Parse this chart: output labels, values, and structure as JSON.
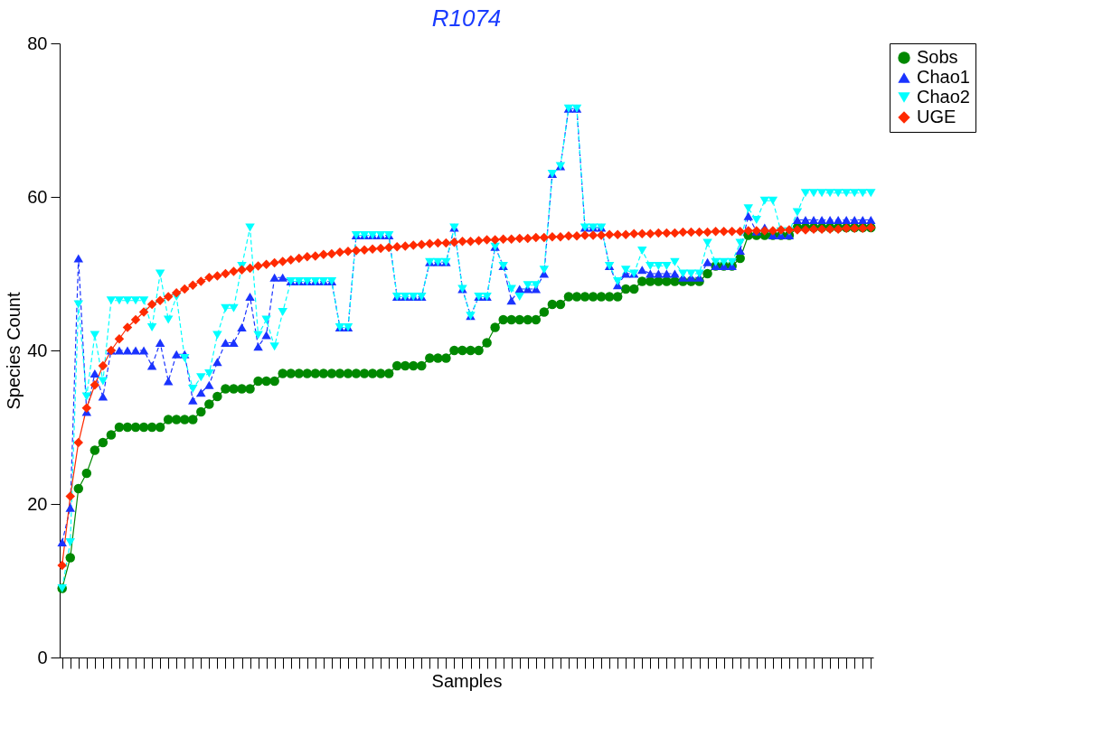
{
  "chart_data": {
    "type": "line",
    "title": "R1074",
    "xlabel": "Samples",
    "ylabel": "Species Count",
    "categories": [
      null,
      null,
      null,
      null,
      null,
      null,
      null,
      null,
      null,
      null,
      null,
      null,
      null,
      null,
      null,
      null,
      null,
      null,
      null,
      null,
      null,
      null,
      null,
      null,
      null,
      null,
      null,
      null,
      null,
      null,
      null,
      null,
      null,
      null,
      null,
      null,
      null,
      null,
      null,
      null,
      null,
      null,
      null,
      null,
      null,
      null,
      null,
      null,
      null,
      null,
      null,
      null,
      null,
      null,
      null,
      null,
      null,
      null,
      null,
      null,
      null,
      null,
      null,
      null,
      null,
      null,
      null,
      null,
      null,
      null,
      null,
      null,
      null,
      null,
      null,
      null,
      null,
      null,
      null,
      null,
      null,
      null,
      null,
      null,
      null,
      null,
      null,
      null,
      null,
      null,
      null,
      null,
      null,
      null,
      null,
      null,
      null,
      null,
      null,
      null
    ],
    "series": [
      {
        "name": "Sobs",
        "color": "#008800",
        "marker": "circle",
        "line_style": "solid",
        "values": [
          9,
          13,
          22,
          24,
          27,
          28,
          29,
          30,
          30,
          30,
          30,
          30,
          30,
          31,
          31,
          31,
          31,
          32,
          33,
          34,
          35,
          35,
          35,
          35,
          36,
          36,
          36,
          37,
          37,
          37,
          37,
          37,
          37,
          37,
          37,
          37,
          37,
          37,
          37,
          37,
          37,
          38,
          38,
          38,
          38,
          39,
          39,
          39,
          40,
          40,
          40,
          40,
          41,
          43,
          44,
          44,
          44,
          44,
          44,
          45,
          46,
          46,
          47,
          47,
          47,
          47,
          47,
          47,
          47,
          48,
          48,
          49,
          49,
          49,
          49,
          49,
          49,
          49,
          49,
          50,
          51,
          51,
          51,
          52,
          55,
          55,
          55,
          55,
          55,
          55,
          56,
          56,
          56,
          56,
          56,
          56,
          56,
          56,
          56,
          56
        ]
      },
      {
        "name": "Chao1",
        "color": "#1a33ff",
        "marker": "triangle",
        "line_style": "dashed",
        "values": [
          15,
          19.5,
          52,
          32,
          37,
          34,
          40,
          40,
          40,
          40,
          40,
          38,
          41,
          36,
          39.5,
          39.5,
          33.5,
          34.5,
          35.5,
          38.5,
          41,
          41,
          43,
          47,
          40.5,
          42,
          49.5,
          49.5,
          49,
          49,
          49,
          49,
          49,
          49,
          43,
          43,
          55,
          55,
          55,
          55,
          55,
          47,
          47,
          47,
          47,
          51.5,
          51.5,
          51.5,
          56,
          48,
          44.5,
          47,
          47,
          53.5,
          51,
          46.5,
          48,
          48,
          48,
          50,
          63,
          64,
          71.5,
          71.5,
          56,
          56,
          56,
          51,
          48.5,
          50,
          50,
          50.5,
          50,
          50,
          50,
          50,
          49.5,
          49.5,
          49.5,
          51.5,
          51,
          51,
          51,
          53,
          57.5,
          55.5,
          56,
          55,
          55,
          55,
          57,
          57,
          57,
          57,
          57,
          57,
          57,
          57,
          57,
          57
        ]
      },
      {
        "name": "Chao2",
        "color": "#00ffff",
        "marker": "triangle-down",
        "line_style": "dashed",
        "values": [
          9,
          15,
          46,
          34,
          42,
          36,
          46.5,
          46.5,
          46.5,
          46.5,
          46.5,
          43,
          50,
          44,
          47,
          39,
          35,
          36.5,
          37,
          42,
          45.5,
          45.5,
          51,
          56,
          42,
          44,
          40.5,
          45,
          49,
          49,
          49,
          49,
          49,
          49,
          43,
          43,
          55,
          55,
          55,
          55,
          55,
          47,
          47,
          47,
          47,
          51.5,
          51.5,
          51.5,
          56,
          48,
          44.5,
          47,
          47,
          53.5,
          51,
          48,
          47,
          48.5,
          48.5,
          50.5,
          63,
          64,
          71.5,
          71.5,
          56,
          56,
          56,
          51,
          49,
          50.5,
          50,
          53,
          51,
          51,
          51,
          51.5,
          50,
          50,
          50,
          54,
          51.5,
          51.5,
          51.5,
          54,
          58.5,
          57,
          59.5,
          59.5,
          55.5,
          55.5,
          58,
          60.5,
          60.5,
          60.5,
          60.5,
          60.5,
          60.5,
          60.5,
          60.5,
          60.5
        ]
      },
      {
        "name": "UGE",
        "color": "#ff2a00",
        "marker": "diamond",
        "line_style": "solid",
        "values": [
          12,
          21,
          28,
          32.5,
          35.5,
          38,
          40,
          41.5,
          43,
          44,
          45,
          46,
          46.5,
          47,
          47.5,
          48,
          48.5,
          49,
          49.5,
          49.7,
          50,
          50.3,
          50.5,
          50.7,
          51,
          51.2,
          51.4,
          51.6,
          51.8,
          52,
          52.2,
          52.3,
          52.5,
          52.6,
          52.8,
          52.9,
          53,
          53.1,
          53.2,
          53.3,
          53.4,
          53.5,
          53.6,
          53.7,
          53.8,
          53.9,
          54,
          54,
          54.1,
          54.2,
          54.2,
          54.3,
          54.4,
          54.4,
          54.5,
          54.5,
          54.6,
          54.6,
          54.7,
          54.7,
          54.8,
          54.8,
          54.9,
          54.9,
          55,
          55,
          55,
          55.1,
          55.1,
          55.1,
          55.2,
          55.2,
          55.2,
          55.3,
          55.3,
          55.3,
          55.4,
          55.4,
          55.4,
          55.4,
          55.5,
          55.5,
          55.5,
          55.5,
          55.6,
          55.6,
          55.6,
          55.6,
          55.7,
          55.7,
          55.7,
          55.7,
          55.8,
          55.8,
          55.8,
          55.8,
          55.9,
          55.9,
          55.9,
          56
        ]
      }
    ],
    "ylim": [
      0,
      80
    ],
    "yticks": [
      0,
      20,
      40,
      60,
      80
    ],
    "grid": false,
    "legend": "top right",
    "tick_labels": "y"
  }
}
